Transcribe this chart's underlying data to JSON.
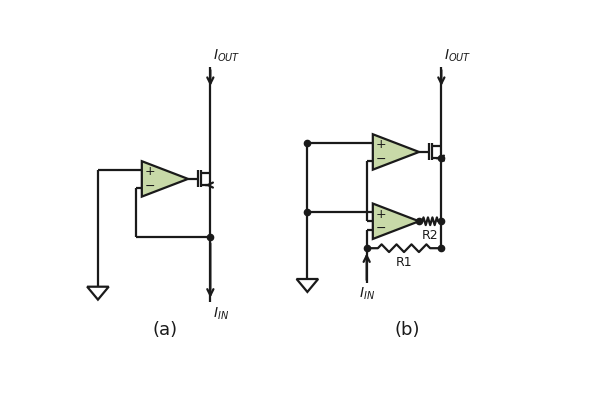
{
  "bg_color": "#ffffff",
  "line_color": "#1a1a1a",
  "op_amp_fill": "#c8d9a8",
  "op_amp_edge": "#1a1a1a",
  "title_a": "(a)",
  "title_b": "(b)",
  "label_iout": "I$_{OUT}$",
  "label_iin": "I$_{IN}$",
  "label_r1": "R1",
  "label_r2": "R2"
}
